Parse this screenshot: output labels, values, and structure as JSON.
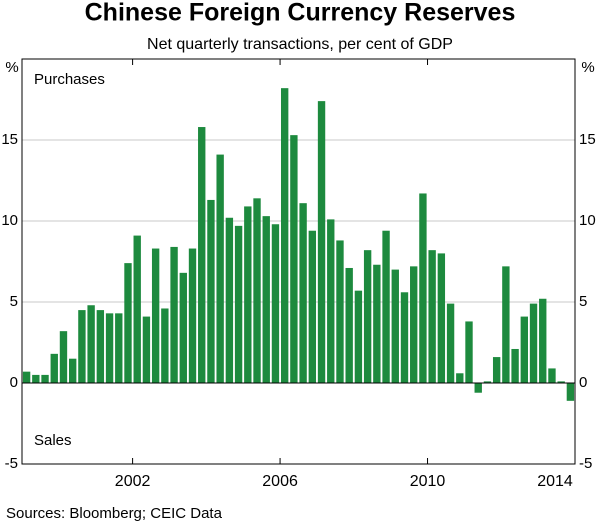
{
  "chart_data": {
    "type": "bar",
    "title": "Chinese Foreign Currency Reserves",
    "subtitle": "Net quarterly transactions, per cent of GDP",
    "y_unit": "%",
    "annotations": [
      "Purchases",
      "Sales"
    ],
    "source": "Sources:   Bloomberg; CEIC Data",
    "color": "#1d8a3e",
    "grid": true,
    "x": [
      1999.125,
      1999.375,
      1999.625,
      1999.875,
      2000.125,
      2000.375,
      2000.625,
      2000.875,
      2001.125,
      2001.375,
      2001.625,
      2001.875,
      2002.125,
      2002.375,
      2002.625,
      2002.875,
      2003.125,
      2003.375,
      2003.625,
      2003.875,
      2004.125,
      2004.375,
      2004.625,
      2004.875,
      2005.125,
      2005.375,
      2005.625,
      2005.875,
      2006.125,
      2006.375,
      2006.625,
      2006.875,
      2007.125,
      2007.375,
      2007.625,
      2007.875,
      2008.125,
      2008.375,
      2008.625,
      2008.875,
      2009.125,
      2009.375,
      2009.625,
      2009.875,
      2010.125,
      2010.375,
      2010.625,
      2010.875,
      2011.125,
      2011.375,
      2011.625,
      2011.875,
      2012.125,
      2012.375,
      2012.625,
      2012.875,
      2013.125,
      2013.375,
      2013.625,
      2013.875
    ],
    "values": [
      0.7,
      0.5,
      0.5,
      1.8,
      3.2,
      1.5,
      4.5,
      4.8,
      4.5,
      4.3,
      4.3,
      7.4,
      9.1,
      4.1,
      8.3,
      4.6,
      8.4,
      6.8,
      8.3,
      15.8,
      11.3,
      14.1,
      10.2,
      9.7,
      10.9,
      11.4,
      10.3,
      9.8,
      18.2,
      15.3,
      11.1,
      9.4,
      17.4,
      10.1,
      8.8,
      7.1,
      5.7,
      8.2,
      7.3,
      9.4,
      7.0,
      5.6,
      7.2,
      11.7,
      8.2,
      8.0,
      4.9,
      0.6,
      3.8,
      -0.6,
      0.1,
      1.6,
      7.2,
      2.1,
      4.1,
      4.9,
      5.2,
      0.9,
      0.1,
      -1.1
    ],
    "xlim": [
      1999,
      2014
    ],
    "xticks": [
      2002,
      2006,
      2010,
      2014
    ],
    "ylim": [
      -5,
      20
    ],
    "yticks": [
      -5,
      0,
      5,
      10,
      15
    ]
  }
}
